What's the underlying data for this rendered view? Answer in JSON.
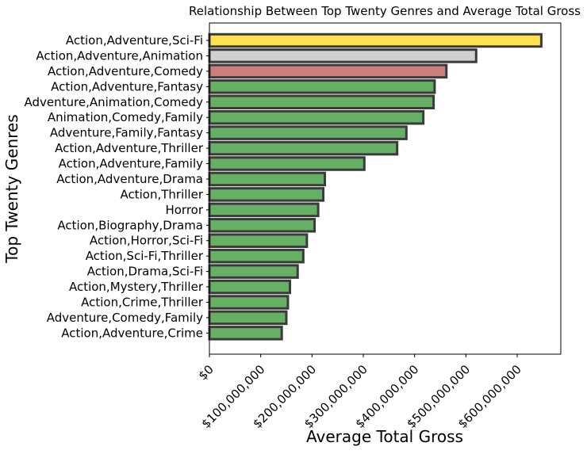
{
  "chart_data": {
    "type": "bar",
    "orientation": "horizontal",
    "title": "Relationship Between Top Twenty Genres and Average Total Gross",
    "xlabel": "Average Total Gross",
    "ylabel": "Top Twenty Genres",
    "xlim": [
      0,
      680000000
    ],
    "x_ticks": [
      0,
      100000000,
      200000000,
      300000000,
      400000000,
      500000000,
      600000000
    ],
    "x_tick_labels": [
      "$0",
      "$100,000,000",
      "$200,000,000",
      "$300,000,000",
      "$400,000,000",
      "$500,000,000",
      "$600,000,000"
    ],
    "grid": false,
    "legend": "none",
    "bar_edge_color": "#3b3b3b",
    "categories": [
      "Action,Adventure,Sci-Fi",
      "Action,Adventure,Animation",
      "Action,Adventure,Comedy",
      "Action,Adventure,Fantasy",
      "Adventure,Animation,Comedy",
      "Animation,Comedy,Family",
      "Adventure,Family,Fantasy",
      "Action,Adventure,Thriller",
      "Action,Adventure,Family",
      "Action,Adventure,Drama",
      "Action,Thriller",
      "Horror",
      "Action,Biography,Drama",
      "Action,Horror,Sci-Fi",
      "Action,Sci-Fi,Thriller",
      "Action,Drama,Sci-Fi",
      "Action,Mystery,Thriller",
      "Action,Crime,Thriller",
      "Adventure,Comedy,Family",
      "Action,Adventure,Crime"
    ],
    "values": [
      647000000,
      520000000,
      462000000,
      439000000,
      437000000,
      417000000,
      384000000,
      366000000,
      302000000,
      225000000,
      222000000,
      212000000,
      205000000,
      190000000,
      183000000,
      172000000,
      157000000,
      153000000,
      150000000,
      141000000
    ],
    "colors": [
      "#ffe14d",
      "#cfcfcf",
      "#cc7e7e",
      "#65b065",
      "#65b065",
      "#65b065",
      "#65b065",
      "#65b065",
      "#65b065",
      "#65b065",
      "#65b065",
      "#65b065",
      "#65b065",
      "#65b065",
      "#65b065",
      "#65b065",
      "#65b065",
      "#65b065",
      "#65b065",
      "#65b065"
    ]
  }
}
